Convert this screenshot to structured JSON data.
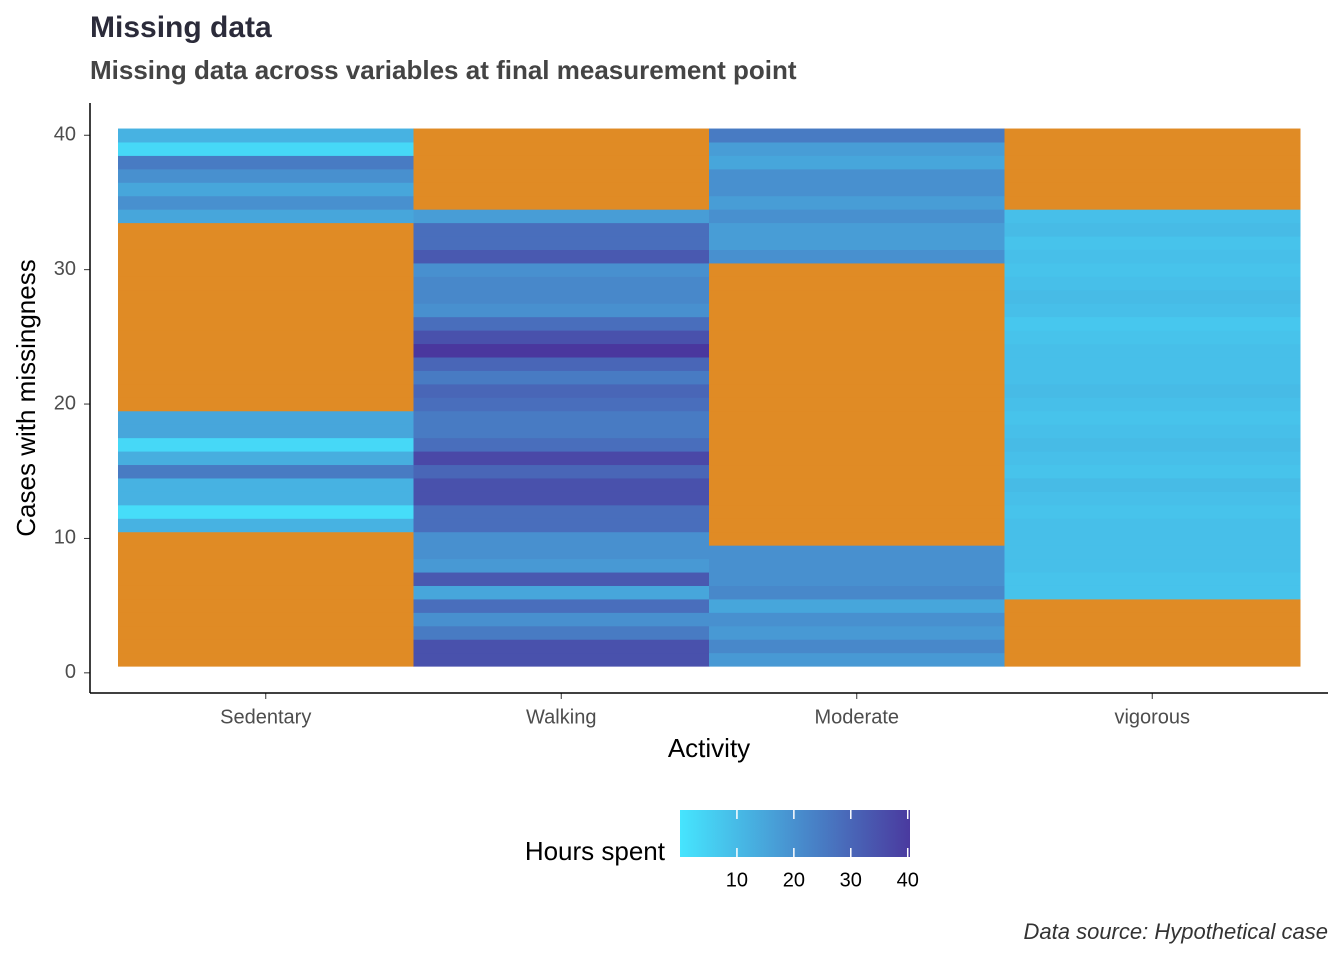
{
  "chart_data": {
    "type": "heatmap",
    "title": "Missing data",
    "subtitle": "Missing data across variables at final measurement point",
    "x_label": "Activity",
    "y_label": "Cases with missingness",
    "caption": "Data source: Hypothetical case",
    "categories": [
      "Sedentary",
      "Walking",
      "Moderate",
      "vigorous"
    ],
    "y": [
      1,
      2,
      3,
      4,
      5,
      6,
      7,
      8,
      9,
      10,
      11,
      12,
      13,
      14,
      15,
      16,
      17,
      18,
      19,
      20,
      21,
      22,
      23,
      24,
      25,
      26,
      27,
      28,
      29,
      30,
      31,
      32,
      33,
      34,
      35,
      36,
      37,
      38,
      39,
      40
    ],
    "values": [
      [
        null,
        null,
        null,
        null,
        null,
        null,
        null,
        null,
        null,
        null,
        12,
        2,
        12,
        12,
        25,
        13,
        3,
        15,
        15,
        null,
        null,
        null,
        null,
        null,
        null,
        null,
        null,
        null,
        null,
        null,
        null,
        null,
        null,
        15,
        20,
        15,
        20,
        25,
        3,
        12
      ],
      [
        35,
        35,
        25,
        20,
        28,
        15,
        33,
        18,
        20,
        20,
        28,
        28,
        35,
        35,
        30,
        37,
        28,
        25,
        25,
        28,
        30,
        25,
        30,
        41,
        35,
        28,
        20,
        22,
        22,
        20,
        33,
        28,
        28,
        17,
        null,
        null,
        null,
        null,
        null,
        null
      ],
      [
        18,
        22,
        18,
        20,
        15,
        22,
        20,
        20,
        20,
        null,
        null,
        null,
        null,
        null,
        null,
        null,
        null,
        null,
        null,
        null,
        null,
        null,
        null,
        null,
        null,
        null,
        null,
        null,
        null,
        null,
        20,
        17,
        17,
        20,
        17,
        20,
        20,
        15,
        17,
        25
      ],
      [
        null,
        null,
        null,
        null,
        null,
        8,
        8,
        9,
        9,
        9,
        9,
        8,
        9,
        10,
        8,
        9,
        10,
        9,
        8,
        9,
        10,
        9,
        9,
        9,
        8,
        7,
        9,
        10,
        9,
        8,
        9,
        8,
        10,
        9,
        null,
        null,
        null,
        null,
        null,
        null
      ]
    ],
    "ylim": [
      -1.5,
      42.4
    ],
    "yticks": [
      0,
      10,
      20,
      30,
      40
    ],
    "colors": [
      "#46e5fe",
      "#4a3a9f"
    ],
    "na_color": "#e08b25",
    "legend_title": "Hours spent",
    "clim": [
      0,
      40.4
    ],
    "legend_ticks": [
      10,
      20,
      30,
      40
    ]
  }
}
